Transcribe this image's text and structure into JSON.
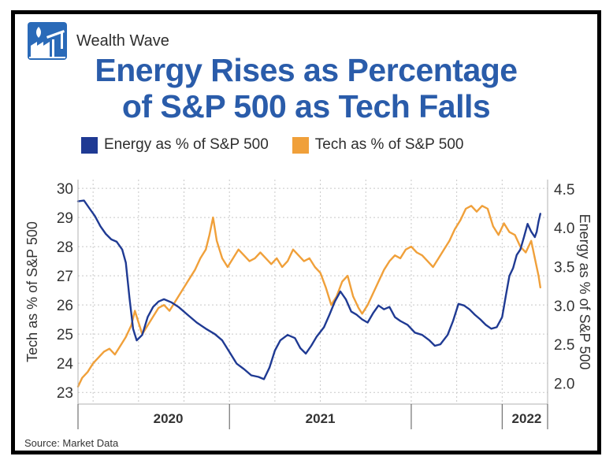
{
  "brand": {
    "name": "Wealth Wave",
    "logo_icon": "oil-pump-factory-logo-icon"
  },
  "title_line1": "Energy Rises as Percentage",
  "title_line2": "of S&P 500 as Tech Falls",
  "source": "Source: Market Data",
  "colors": {
    "energy": "#1f3a93",
    "tech": "#f0a03a",
    "title": "#2a5caa",
    "logo": "#2a6ab8"
  },
  "chart_data": {
    "type": "line",
    "title": "Energy Rises as Percentage of S&P 500 as Tech Falls",
    "legend_position": "top",
    "grid": true,
    "x": {
      "domain": [
        2019.667,
        2022.25
      ],
      "year_labels": [
        "2020",
        "2021",
        "2022"
      ]
    },
    "left_axis": {
      "label": "Tech as % of S&P 500",
      "range": [
        22.6,
        30.3
      ],
      "ticks": [
        23,
        24,
        25,
        26,
        27,
        28,
        29,
        30
      ]
    },
    "right_axis": {
      "label": "Energy as % of S&P 500",
      "range": [
        1.73,
        4.62
      ],
      "ticks": [
        "2.0",
        "2.5",
        "3.0",
        "3.5",
        "4.0",
        "4.5"
      ]
    },
    "series": [
      {
        "name": "Energy as % of S&P 500",
        "axis": "right",
        "color": "#1f3a93",
        "points": [
          [
            2019.667,
            4.34
          ],
          [
            2019.7,
            4.35
          ],
          [
            2019.73,
            4.25
          ],
          [
            2019.76,
            4.15
          ],
          [
            2019.79,
            4.02
          ],
          [
            2019.82,
            3.92
          ],
          [
            2019.85,
            3.85
          ],
          [
            2019.88,
            3.82
          ],
          [
            2019.91,
            3.72
          ],
          [
            2019.93,
            3.55
          ],
          [
            2019.95,
            3.1
          ],
          [
            2019.97,
            2.7
          ],
          [
            2019.99,
            2.55
          ],
          [
            2020.02,
            2.62
          ],
          [
            2020.05,
            2.85
          ],
          [
            2020.08,
            2.98
          ],
          [
            2020.11,
            3.05
          ],
          [
            2020.14,
            3.08
          ],
          [
            2020.18,
            3.04
          ],
          [
            2020.22,
            2.98
          ],
          [
            2020.27,
            2.88
          ],
          [
            2020.32,
            2.78
          ],
          [
            2020.37,
            2.7
          ],
          [
            2020.42,
            2.63
          ],
          [
            2020.46,
            2.55
          ],
          [
            2020.5,
            2.4
          ],
          [
            2020.54,
            2.25
          ],
          [
            2020.58,
            2.18
          ],
          [
            2020.62,
            2.1
          ],
          [
            2020.66,
            2.08
          ],
          [
            2020.69,
            2.05
          ],
          [
            2020.72,
            2.2
          ],
          [
            2020.75,
            2.42
          ],
          [
            2020.78,
            2.55
          ],
          [
            2020.82,
            2.62
          ],
          [
            2020.86,
            2.58
          ],
          [
            2020.89,
            2.45
          ],
          [
            2020.92,
            2.38
          ],
          [
            2020.95,
            2.48
          ],
          [
            2020.98,
            2.6
          ],
          [
            2021.02,
            2.72
          ],
          [
            2021.05,
            2.88
          ],
          [
            2021.08,
            3.05
          ],
          [
            2021.11,
            3.18
          ],
          [
            2021.14,
            3.08
          ],
          [
            2021.17,
            2.92
          ],
          [
            2021.2,
            2.88
          ],
          [
            2021.23,
            2.82
          ],
          [
            2021.26,
            2.78
          ],
          [
            2021.29,
            2.9
          ],
          [
            2021.32,
            3.0
          ],
          [
            2021.35,
            2.95
          ],
          [
            2021.38,
            2.98
          ],
          [
            2021.41,
            2.85
          ],
          [
            2021.44,
            2.8
          ],
          [
            2021.48,
            2.75
          ],
          [
            2021.52,
            2.65
          ],
          [
            2021.56,
            2.62
          ],
          [
            2021.6,
            2.55
          ],
          [
            2021.63,
            2.48
          ],
          [
            2021.66,
            2.5
          ],
          [
            2021.7,
            2.62
          ],
          [
            2021.73,
            2.8
          ],
          [
            2021.76,
            3.02
          ],
          [
            2021.79,
            3.0
          ],
          [
            2021.82,
            2.95
          ],
          [
            2021.85,
            2.88
          ],
          [
            2021.88,
            2.82
          ],
          [
            2021.91,
            2.75
          ],
          [
            2021.94,
            2.7
          ],
          [
            2021.97,
            2.72
          ],
          [
            2022.0,
            2.85
          ],
          [
            2022.02,
            3.12
          ],
          [
            2022.04,
            3.38
          ],
          [
            2022.06,
            3.48
          ],
          [
            2022.08,
            3.65
          ],
          [
            2022.1,
            3.72
          ],
          [
            2022.12,
            3.88
          ],
          [
            2022.14,
            4.05
          ],
          [
            2022.16,
            3.95
          ],
          [
            2022.18,
            3.88
          ],
          [
            2022.19,
            3.95
          ],
          [
            2022.2,
            4.08
          ],
          [
            2022.21,
            4.18
          ]
        ]
      },
      {
        "name": "Tech as % of S&P 500",
        "axis": "left",
        "color": "#f0a03a",
        "points": [
          [
            2019.667,
            23.2
          ],
          [
            2019.69,
            23.5
          ],
          [
            2019.72,
            23.7
          ],
          [
            2019.75,
            24.0
          ],
          [
            2019.78,
            24.2
          ],
          [
            2019.81,
            24.4
          ],
          [
            2019.84,
            24.5
          ],
          [
            2019.87,
            24.3
          ],
          [
            2019.9,
            24.6
          ],
          [
            2019.93,
            24.9
          ],
          [
            2019.96,
            25.3
          ],
          [
            2019.98,
            25.8
          ],
          [
            2020.0,
            25.4
          ],
          [
            2020.02,
            25.0
          ],
          [
            2020.05,
            25.3
          ],
          [
            2020.08,
            25.6
          ],
          [
            2020.11,
            25.9
          ],
          [
            2020.14,
            26.0
          ],
          [
            2020.17,
            25.8
          ],
          [
            2020.2,
            26.1
          ],
          [
            2020.23,
            26.4
          ],
          [
            2020.27,
            26.8
          ],
          [
            2020.31,
            27.2
          ],
          [
            2020.34,
            27.6
          ],
          [
            2020.37,
            27.9
          ],
          [
            2020.39,
            28.4
          ],
          [
            2020.41,
            29.0
          ],
          [
            2020.43,
            28.2
          ],
          [
            2020.46,
            27.6
          ],
          [
            2020.49,
            27.3
          ],
          [
            2020.52,
            27.6
          ],
          [
            2020.55,
            27.9
          ],
          [
            2020.58,
            27.7
          ],
          [
            2020.61,
            27.5
          ],
          [
            2020.64,
            27.6
          ],
          [
            2020.67,
            27.8
          ],
          [
            2020.7,
            27.6
          ],
          [
            2020.73,
            27.4
          ],
          [
            2020.76,
            27.6
          ],
          [
            2020.79,
            27.3
          ],
          [
            2020.82,
            27.5
          ],
          [
            2020.85,
            27.9
          ],
          [
            2020.88,
            27.7
          ],
          [
            2020.91,
            27.5
          ],
          [
            2020.94,
            27.6
          ],
          [
            2020.97,
            27.3
          ],
          [
            2021.0,
            27.1
          ],
          [
            2021.03,
            26.6
          ],
          [
            2021.06,
            26.0
          ],
          [
            2021.09,
            26.3
          ],
          [
            2021.12,
            26.8
          ],
          [
            2021.15,
            27.0
          ],
          [
            2021.18,
            26.3
          ],
          [
            2021.21,
            25.9
          ],
          [
            2021.23,
            25.7
          ],
          [
            2021.26,
            26.0
          ],
          [
            2021.29,
            26.4
          ],
          [
            2021.32,
            26.8
          ],
          [
            2021.35,
            27.2
          ],
          [
            2021.38,
            27.5
          ],
          [
            2021.41,
            27.7
          ],
          [
            2021.44,
            27.6
          ],
          [
            2021.47,
            27.9
          ],
          [
            2021.5,
            28.0
          ],
          [
            2021.53,
            27.8
          ],
          [
            2021.56,
            27.7
          ],
          [
            2021.59,
            27.5
          ],
          [
            2021.62,
            27.3
          ],
          [
            2021.65,
            27.6
          ],
          [
            2021.68,
            27.9
          ],
          [
            2021.71,
            28.2
          ],
          [
            2021.74,
            28.6
          ],
          [
            2021.77,
            28.9
          ],
          [
            2021.8,
            29.3
          ],
          [
            2021.83,
            29.4
          ],
          [
            2021.86,
            29.2
          ],
          [
            2021.89,
            29.4
          ],
          [
            2021.92,
            29.3
          ],
          [
            2021.95,
            28.7
          ],
          [
            2021.98,
            28.4
          ],
          [
            2022.01,
            28.8
          ],
          [
            2022.04,
            28.5
          ],
          [
            2022.07,
            28.4
          ],
          [
            2022.1,
            28.0
          ],
          [
            2022.13,
            27.8
          ],
          [
            2022.16,
            28.2
          ],
          [
            2022.18,
            27.6
          ],
          [
            2022.2,
            27.0
          ],
          [
            2022.21,
            26.6
          ]
        ]
      }
    ]
  }
}
